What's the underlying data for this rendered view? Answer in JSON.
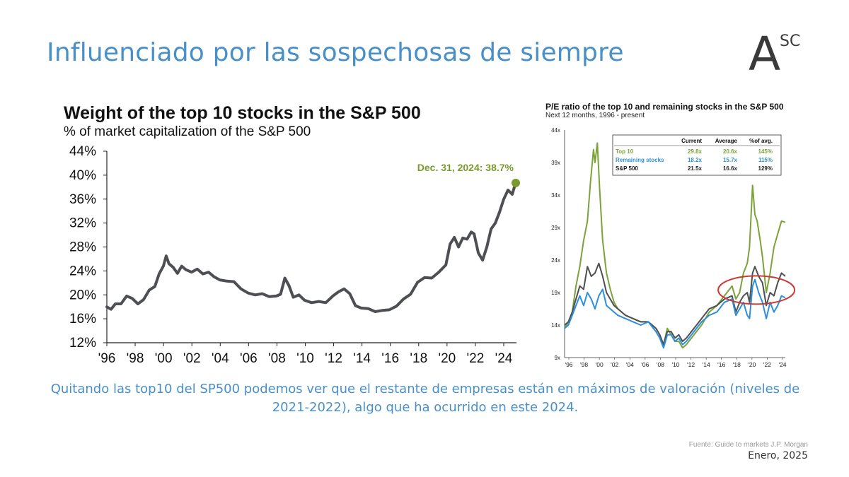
{
  "slide": {
    "title": "Influenciado por las sospechosas de siempre",
    "logo_main": "A",
    "logo_sup": "SC",
    "caption": "Quitando las top10 del SP500 podemos ver que el restante de empresas están en máximos de valoración (niveles de 2021-2022), algo que ha ocurrido en este 2024.",
    "source": "Fuente: Guide to markets J.P. Morgan",
    "date": "Enero, 2025"
  },
  "chart_data": [
    {
      "type": "line",
      "title": "Weight of the top 10 stocks in the S&P 500",
      "subtitle": "% of market capitalization of the S&P 500",
      "x_ticks": [
        "'96",
        "'98",
        "'00",
        "'02",
        "'04",
        "'06",
        "'08",
        "'10",
        "'12",
        "'14",
        "'16",
        "'18",
        "'20",
        "'22",
        "'24"
      ],
      "y_ticks": [
        "44%",
        "40%",
        "36%",
        "32%",
        "28%",
        "24%",
        "20%",
        "16%",
        "12%"
      ],
      "ylim": [
        12,
        44
      ],
      "xlim": [
        1996,
        2025
      ],
      "annotation": "Dec. 31, 2024: 38.7%",
      "colors": {
        "line": "#4d4f53",
        "marker": "#7a9a2e",
        "annotation": "#7a9a2e"
      },
      "series": [
        {
          "x": [
            1996.0,
            1996.3,
            1996.6,
            1997.0,
            1997.4,
            1997.8,
            1998.2,
            1998.6,
            1999.0,
            1999.4,
            1999.7,
            2000.0,
            2000.2,
            2000.4,
            2000.7,
            2001.0,
            2001.3,
            2001.6,
            2002.0,
            2002.4,
            2002.8,
            2003.2,
            2003.6,
            2004.0,
            2004.5,
            2005.0,
            2005.5,
            2006.0,
            2006.5,
            2007.0,
            2007.5,
            2008.0,
            2008.3,
            2008.6,
            2008.9,
            2009.2,
            2009.6,
            2010.0,
            2010.5,
            2011.0,
            2011.5,
            2012.0,
            2012.4,
            2012.8,
            2013.2,
            2013.6,
            2014.0,
            2014.5,
            2015.0,
            2015.5,
            2016.0,
            2016.5,
            2017.0,
            2017.5,
            2018.0,
            2018.5,
            2019.0,
            2019.5,
            2020.0,
            2020.3,
            2020.6,
            2020.9,
            2021.2,
            2021.5,
            2021.8,
            2022.0,
            2022.3,
            2022.6,
            2022.9,
            2023.2,
            2023.5,
            2023.8,
            2024.1,
            2024.4,
            2024.7,
            2024.85,
            2025.0
          ],
          "y": [
            18,
            17.6,
            18.5,
            18.5,
            19.8,
            19.4,
            18.5,
            19.2,
            20.8,
            21.4,
            23.5,
            24.8,
            26.5,
            25.2,
            24.6,
            23.6,
            24.8,
            24.2,
            23.8,
            24.3,
            23.5,
            23.8,
            23.0,
            22.5,
            22.3,
            22.2,
            21.0,
            20.3,
            20.0,
            20.2,
            19.7,
            19.8,
            20.1,
            22.8,
            21.5,
            19.6,
            20.0,
            19.1,
            18.7,
            18.9,
            18.7,
            19.8,
            20.5,
            21.0,
            20.2,
            18.2,
            17.8,
            17.7,
            17.2,
            17.4,
            17.5,
            18.1,
            19.3,
            20.1,
            22.1,
            22.9,
            22.8,
            23.8,
            25.0,
            28.5,
            29.6,
            28.0,
            29.5,
            29.3,
            30.5,
            30.2,
            27.0,
            25.8,
            28.0,
            31.0,
            32.0,
            33.8,
            36.0,
            37.5,
            36.8,
            38.0,
            38.7
          ]
        }
      ]
    },
    {
      "type": "line",
      "title": "P/E ratio of the top 10 and remaining stocks in the S&P 500",
      "subtitle": "Next 12 months, 1996 - present",
      "x_ticks": [
        "'96",
        "'98",
        "'00",
        "'02",
        "'04",
        "'06",
        "'08",
        "'10",
        "'12",
        "'14",
        "'16",
        "'18",
        "'20",
        "'22",
        "'24"
      ],
      "y_ticks": [
        "44x",
        "39x",
        "34x",
        "29x",
        "24x",
        "19x",
        "14x",
        "9x"
      ],
      "ylim": [
        9,
        44
      ],
      "xlim": [
        1996,
        2025
      ],
      "table": {
        "headers": [
          "",
          "Current",
          "Average",
          "%of avg."
        ],
        "rows": [
          {
            "label": "Top 10",
            "current": "29.8x",
            "average": "20.6x",
            "pct": "145%"
          },
          {
            "label": "Remaining stocks",
            "current": "18.2x",
            "average": "15.7x",
            "pct": "115%"
          },
          {
            "label": "S&P 500",
            "current": "21.5x",
            "average": "16.6x",
            "pct": "129%"
          }
        ]
      },
      "colors": {
        "top10": "#7ba33a",
        "remaining": "#2d8fd9",
        "sp500": "#4d4f53",
        "highlight": "#cc3b33"
      },
      "series": [
        {
          "key": "top10",
          "x": [
            1996.0,
            1996.5,
            1997.0,
            1997.5,
            1998.0,
            1998.5,
            1999.0,
            1999.4,
            1999.8,
            2000.0,
            2000.3,
            2000.6,
            2001.0,
            2001.5,
            2002.0,
            2002.5,
            2003.0,
            2004.0,
            2005.0,
            2006.0,
            2007.0,
            2008.0,
            2008.5,
            2009.0,
            2009.5,
            2010.0,
            2010.5,
            2011.0,
            2011.5,
            2012.0,
            2013.0,
            2014.0,
            2015.0,
            2016.0,
            2017.0,
            2018.0,
            2018.5,
            2019.0,
            2019.5,
            2020.0,
            2020.3,
            2020.7,
            2021.0,
            2021.3,
            2021.7,
            2022.0,
            2022.5,
            2023.0,
            2023.5,
            2024.0,
            2024.5,
            2025.0
          ],
          "y": [
            13.5,
            14.5,
            16.0,
            20.0,
            23.0,
            27.0,
            30.0,
            36.0,
            41.0,
            39.0,
            42.0,
            35.0,
            27.0,
            22.0,
            19.5,
            17.5,
            16.5,
            15.5,
            15.0,
            14.5,
            14.5,
            13.5,
            12.5,
            11.0,
            13.5,
            12.5,
            11.5,
            11.5,
            10.5,
            11.0,
            12.5,
            14.0,
            16.0,
            17.0,
            18.5,
            20.0,
            18.0,
            19.0,
            22.0,
            23.5,
            26.0,
            35.5,
            31.0,
            30.0,
            27.0,
            24.5,
            19.0,
            22.0,
            26.0,
            28.0,
            30.0,
            29.8
          ]
        },
        {
          "key": "remaining",
          "x": [
            1996.0,
            1996.5,
            1997.0,
            1997.5,
            1998.0,
            1998.5,
            1999.0,
            1999.5,
            2000.0,
            2000.5,
            2001.0,
            2001.5,
            2002.0,
            2002.5,
            2003.0,
            2004.0,
            2005.0,
            2006.0,
            2007.0,
            2008.0,
            2008.5,
            2009.0,
            2009.5,
            2010.0,
            2010.5,
            2011.0,
            2011.5,
            2012.0,
            2013.0,
            2014.0,
            2015.0,
            2016.0,
            2017.0,
            2018.0,
            2018.5,
            2019.0,
            2019.5,
            2020.0,
            2020.3,
            2020.7,
            2021.0,
            2021.5,
            2022.0,
            2022.5,
            2023.0,
            2023.5,
            2024.0,
            2024.5,
            2025.0
          ],
          "y": [
            13.5,
            14.0,
            15.5,
            17.0,
            18.5,
            17.0,
            19.0,
            18.0,
            16.5,
            18.5,
            19.5,
            17.0,
            16.5,
            16.0,
            15.5,
            15.0,
            14.5,
            14.0,
            14.5,
            13.0,
            12.0,
            10.5,
            12.5,
            12.5,
            11.5,
            12.0,
            11.0,
            11.5,
            13.0,
            14.5,
            15.5,
            16.0,
            17.5,
            18.0,
            15.5,
            16.5,
            17.5,
            15.5,
            15.0,
            20.0,
            21.0,
            19.0,
            17.5,
            15.0,
            17.5,
            16.0,
            17.0,
            18.5,
            18.2
          ]
        },
        {
          "key": "sp500",
          "x": [
            1996.0,
            1996.5,
            1997.0,
            1997.5,
            1998.0,
            1998.5,
            1999.0,
            1999.5,
            2000.0,
            2000.5,
            2001.0,
            2001.5,
            2002.0,
            2002.5,
            2003.0,
            2004.0,
            2005.0,
            2006.0,
            2007.0,
            2008.0,
            2008.5,
            2009.0,
            2009.5,
            2010.0,
            2010.5,
            2011.0,
            2011.5,
            2012.0,
            2013.0,
            2014.0,
            2015.0,
            2016.0,
            2017.0,
            2018.0,
            2018.5,
            2019.0,
            2019.5,
            2020.0,
            2020.3,
            2020.7,
            2021.0,
            2021.5,
            2022.0,
            2022.5,
            2023.0,
            2023.5,
            2024.0,
            2024.5,
            2025.0
          ],
          "y": [
            14.0,
            14.5,
            16.0,
            18.0,
            20.0,
            19.5,
            23.0,
            21.5,
            22.0,
            23.5,
            21.5,
            19.0,
            18.0,
            17.0,
            16.5,
            15.5,
            15.0,
            14.5,
            14.5,
            13.5,
            12.5,
            11.0,
            13.0,
            13.0,
            12.0,
            12.5,
            11.5,
            12.0,
            13.5,
            15.0,
            16.5,
            17.0,
            18.0,
            18.5,
            16.0,
            17.5,
            18.5,
            19.0,
            17.5,
            22.0,
            23.0,
            21.5,
            20.5,
            17.0,
            19.0,
            18.5,
            20.5,
            22.0,
            21.5
          ]
        }
      ]
    }
  ]
}
